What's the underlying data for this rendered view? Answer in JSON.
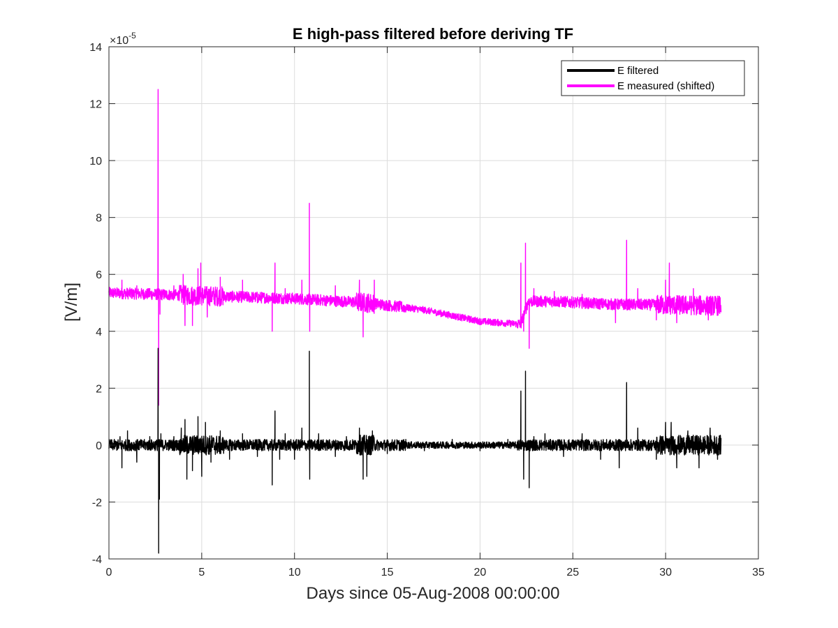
{
  "chart_data": {
    "type": "line",
    "title": "E high-pass filtered before deriving TF",
    "xlabel": "Days since 05-Aug-2008 00:00:00",
    "ylabel": "[V/m]",
    "y_exponent_label": "×10",
    "y_exponent_power": "-5",
    "xlim": [
      0,
      35
    ],
    "ylim": [
      -4,
      14
    ],
    "x_ticks": [
      0,
      5,
      10,
      15,
      20,
      25,
      30,
      35
    ],
    "y_ticks": [
      -4,
      -2,
      0,
      2,
      4,
      6,
      8,
      10,
      12,
      14
    ],
    "grid": true,
    "legend_position": "top-right",
    "series": [
      {
        "name": "E filtered",
        "color": "#000000",
        "baseline": 0.0,
        "points": [
          [
            0,
            0.0
          ],
          [
            0.6,
            0.3
          ],
          [
            0.7,
            -0.8
          ],
          [
            1.0,
            0.5
          ],
          [
            1.5,
            -0.6
          ],
          [
            2.2,
            0.3
          ],
          [
            2.65,
            3.4
          ],
          [
            2.68,
            -3.8
          ],
          [
            2.72,
            -1.9
          ],
          [
            2.8,
            0.4
          ],
          [
            3.5,
            0.3
          ],
          [
            3.9,
            0.6
          ],
          [
            4.1,
            0.9
          ],
          [
            4.2,
            -1.2
          ],
          [
            4.5,
            -0.9
          ],
          [
            4.8,
            1.0
          ],
          [
            5.0,
            -1.1
          ],
          [
            5.2,
            0.8
          ],
          [
            5.5,
            -0.6
          ],
          [
            6.0,
            0.5
          ],
          [
            6.5,
            -0.5
          ],
          [
            7.2,
            0.4
          ],
          [
            8.0,
            -0.4
          ],
          [
            8.8,
            -1.4
          ],
          [
            8.95,
            1.2
          ],
          [
            9.2,
            -0.5
          ],
          [
            9.5,
            0.4
          ],
          [
            10.0,
            -0.5
          ],
          [
            10.4,
            0.6
          ],
          [
            10.8,
            3.3
          ],
          [
            10.82,
            -1.2
          ],
          [
            11.3,
            0.4
          ],
          [
            12.2,
            -0.4
          ],
          [
            12.8,
            0.3
          ],
          [
            13.5,
            0.6
          ],
          [
            13.7,
            -1.2
          ],
          [
            13.9,
            -1.1
          ],
          [
            14.2,
            0.5
          ],
          [
            15.0,
            -0.3
          ],
          [
            16.0,
            0.2
          ],
          [
            17.0,
            -0.2
          ],
          [
            18.5,
            0.2
          ],
          [
            20.0,
            -0.2
          ],
          [
            21.5,
            0.2
          ],
          [
            22.2,
            1.9
          ],
          [
            22.35,
            -1.2
          ],
          [
            22.45,
            2.6
          ],
          [
            22.65,
            -1.5
          ],
          [
            22.9,
            0.3
          ],
          [
            23.5,
            0.4
          ],
          [
            24.5,
            -0.4
          ],
          [
            25.5,
            0.4
          ],
          [
            26.5,
            -0.5
          ],
          [
            27.5,
            -0.8
          ],
          [
            27.9,
            2.2
          ],
          [
            28.5,
            0.6
          ],
          [
            29.5,
            -0.5
          ],
          [
            30.0,
            0.8
          ],
          [
            30.3,
            0.8
          ],
          [
            30.6,
            -0.8
          ],
          [
            31.2,
            0.5
          ],
          [
            31.8,
            -0.8
          ],
          [
            32.4,
            0.6
          ],
          [
            32.8,
            -0.5
          ],
          [
            33.0,
            0.6
          ]
        ]
      },
      {
        "name": "E measured (shifted)",
        "color": "#ff00ff",
        "baseline": [
          [
            0,
            5.35
          ],
          [
            5,
            5.25
          ],
          [
            10,
            5.15
          ],
          [
            14,
            5.0
          ],
          [
            17,
            4.75
          ],
          [
            20,
            4.35
          ],
          [
            22.2,
            4.25
          ],
          [
            22.6,
            5.05
          ],
          [
            24,
            5.05
          ],
          [
            27,
            4.95
          ],
          [
            33,
            4.9
          ]
        ],
        "points": [
          [
            0,
            5.4
          ],
          [
            0.7,
            5.8
          ],
          [
            1.5,
            5.6
          ],
          [
            2.2,
            5.5
          ],
          [
            2.65,
            12.5
          ],
          [
            2.68,
            1.4
          ],
          [
            2.75,
            4.6
          ],
          [
            3.5,
            5.6
          ],
          [
            4.0,
            6.0
          ],
          [
            4.1,
            4.2
          ],
          [
            4.5,
            4.2
          ],
          [
            4.8,
            6.2
          ],
          [
            4.95,
            6.4
          ],
          [
            5.3,
            4.5
          ],
          [
            6.0,
            5.9
          ],
          [
            7.2,
            5.8
          ],
          [
            8.0,
            5.0
          ],
          [
            8.8,
            4.0
          ],
          [
            8.95,
            6.4
          ],
          [
            9.5,
            5.5
          ],
          [
            10.4,
            5.8
          ],
          [
            10.8,
            8.5
          ],
          [
            10.82,
            4.0
          ],
          [
            12.2,
            5.6
          ],
          [
            13.5,
            5.8
          ],
          [
            13.7,
            3.8
          ],
          [
            14.0,
            5.2
          ],
          [
            14.3,
            5.8
          ],
          [
            15.0,
            4.8
          ],
          [
            16.5,
            4.9
          ],
          [
            18.0,
            4.6
          ],
          [
            19.5,
            4.4
          ],
          [
            21.0,
            4.3
          ],
          [
            22.2,
            6.4
          ],
          [
            22.35,
            4.0
          ],
          [
            22.45,
            7.1
          ],
          [
            22.65,
            3.4
          ],
          [
            22.9,
            5.5
          ],
          [
            24.0,
            5.4
          ],
          [
            25.5,
            5.3
          ],
          [
            27.3,
            4.3
          ],
          [
            27.9,
            7.2
          ],
          [
            28.5,
            5.5
          ],
          [
            29.5,
            4.4
          ],
          [
            30.0,
            5.8
          ],
          [
            30.2,
            6.4
          ],
          [
            30.6,
            4.3
          ],
          [
            31.5,
            5.5
          ],
          [
            32.3,
            4.4
          ],
          [
            33.0,
            5.5
          ]
        ]
      }
    ]
  }
}
